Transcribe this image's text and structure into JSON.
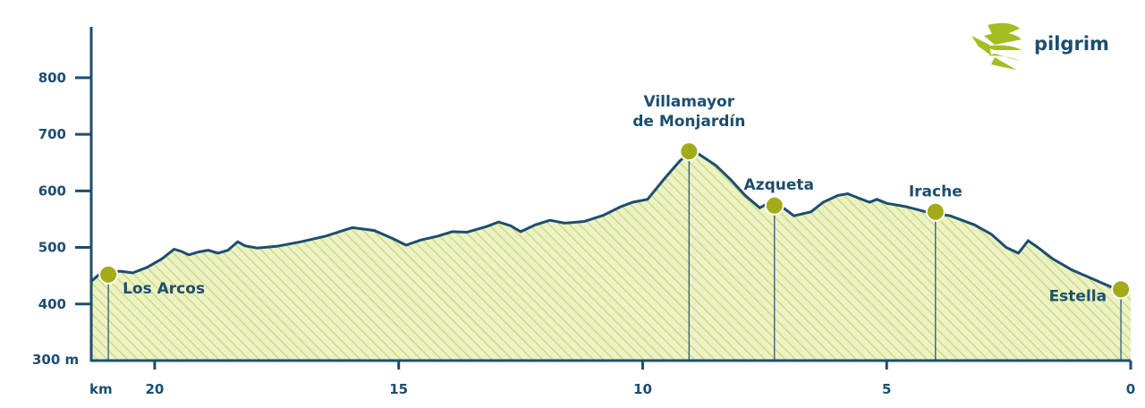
{
  "brand": {
    "name": "pilgrim",
    "icon": "scallop-shell-icon",
    "color": "#a4bd1f"
  },
  "colors": {
    "axis": "#1d4e6e",
    "fill": "#edf2c6",
    "hatch": "#cddb7c",
    "marker": "#a4ab18",
    "marker_edge": "#ffffff"
  },
  "chart_data": {
    "type": "area",
    "title": "",
    "xlabel": "km",
    "ylabel": "m",
    "xlim": [
      21.3,
      0
    ],
    "ylim": [
      300,
      890
    ],
    "x_ticks": [
      20,
      15,
      10,
      5,
      0
    ],
    "y_ticks": [
      800,
      700,
      600,
      500,
      400
    ],
    "y_origin_label": "300 m",
    "x_origin_label": "km",
    "grid": false,
    "profile": [
      [
        21.3,
        440
      ],
      [
        21.1,
        455
      ],
      [
        20.7,
        458
      ],
      [
        20.45,
        455
      ],
      [
        20.15,
        465
      ],
      [
        19.85,
        480
      ],
      [
        19.6,
        497
      ],
      [
        19.45,
        493
      ],
      [
        19.3,
        487
      ],
      [
        19.1,
        492
      ],
      [
        18.9,
        495
      ],
      [
        18.7,
        490
      ],
      [
        18.5,
        495
      ],
      [
        18.3,
        510
      ],
      [
        18.15,
        503
      ],
      [
        17.9,
        499
      ],
      [
        17.5,
        502
      ],
      [
        17.0,
        510
      ],
      [
        16.5,
        520
      ],
      [
        15.95,
        535
      ],
      [
        15.5,
        530
      ],
      [
        15.1,
        515
      ],
      [
        14.85,
        504
      ],
      [
        14.55,
        513
      ],
      [
        14.2,
        520
      ],
      [
        13.9,
        528
      ],
      [
        13.6,
        527
      ],
      [
        13.2,
        537
      ],
      [
        12.95,
        545
      ],
      [
        12.7,
        538
      ],
      [
        12.5,
        528
      ],
      [
        12.2,
        540
      ],
      [
        11.9,
        548
      ],
      [
        11.6,
        543
      ],
      [
        11.2,
        546
      ],
      [
        10.8,
        557
      ],
      [
        10.45,
        572
      ],
      [
        10.2,
        580
      ],
      [
        9.9,
        585
      ],
      [
        9.55,
        622
      ],
      [
        9.25,
        652
      ],
      [
        9.05,
        668
      ],
      [
        8.85,
        665
      ],
      [
        8.5,
        645
      ],
      [
        8.2,
        620
      ],
      [
        7.9,
        592
      ],
      [
        7.6,
        570
      ],
      [
        7.35,
        582
      ],
      [
        7.15,
        572
      ],
      [
        6.9,
        556
      ],
      [
        6.55,
        563
      ],
      [
        6.3,
        580
      ],
      [
        6.0,
        592
      ],
      [
        5.8,
        595
      ],
      [
        5.6,
        588
      ],
      [
        5.35,
        580
      ],
      [
        5.2,
        585
      ],
      [
        5.0,
        578
      ],
      [
        4.6,
        572
      ],
      [
        4.15,
        562
      ],
      [
        3.7,
        556
      ],
      [
        3.2,
        540
      ],
      [
        2.85,
        523
      ],
      [
        2.55,
        500
      ],
      [
        2.3,
        490
      ],
      [
        2.1,
        512
      ],
      [
        1.9,
        500
      ],
      [
        1.6,
        480
      ],
      [
        1.2,
        460
      ],
      [
        0.8,
        445
      ],
      [
        0.4,
        430
      ],
      [
        0.15,
        425
      ],
      [
        0.0,
        424
      ]
    ],
    "stops": [
      {
        "name": "Los Arcos",
        "km": 20.95,
        "alt": 452
      },
      {
        "name_line1": "Villamayor",
        "name_line2": "de Monjardín",
        "km": 9.05,
        "alt": 670
      },
      {
        "name": "Azqueta",
        "km": 7.3,
        "alt": 574
      },
      {
        "name": "Irache",
        "km": 4.0,
        "alt": 563
      },
      {
        "name": "Estella",
        "km": 0.2,
        "alt": 426
      }
    ]
  }
}
